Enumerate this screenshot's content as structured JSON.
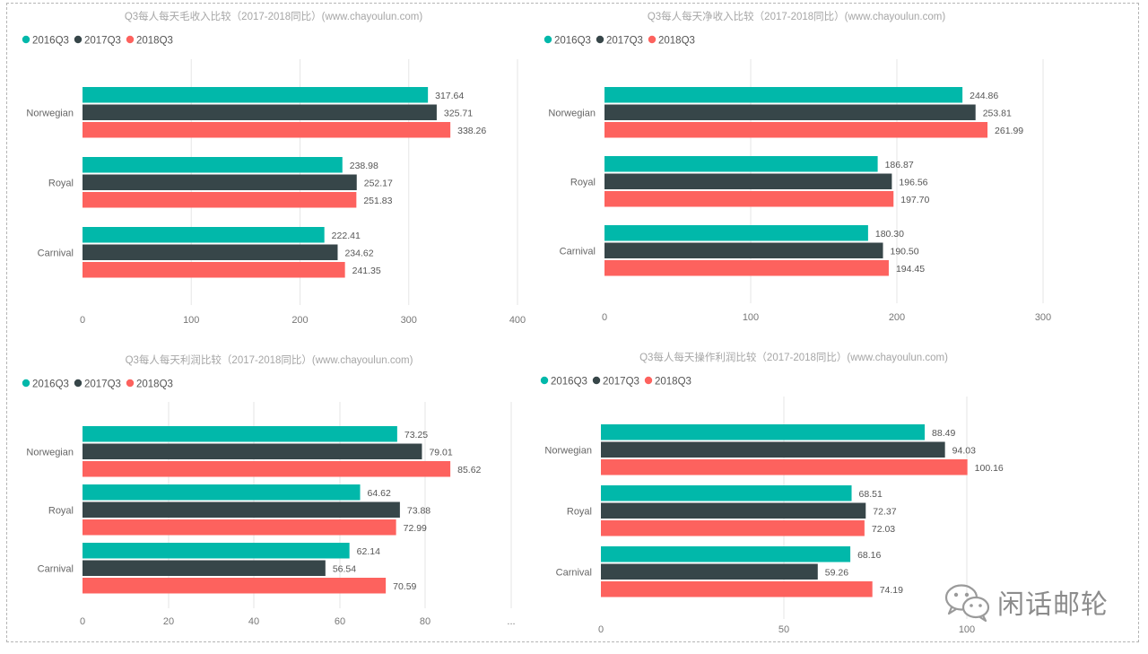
{
  "series_colors": {
    "2016Q3": "#01b8aa",
    "2017Q3": "#374649",
    "2018Q3": "#fd625e"
  },
  "watermark": {
    "text": "闲话邮轮"
  },
  "chart_data": [
    {
      "type": "bar",
      "orientation": "horizontal",
      "title": "Q3每人每天毛收入比较（2017-2018同比）(www.chayoulun.com)",
      "categories": [
        "Norwegian",
        "Royal",
        "Carnival"
      ],
      "series": [
        {
          "name": "2016Q3",
          "values": [
            317.64,
            238.98,
            222.41
          ],
          "labels": [
            "317.64",
            "238.98",
            "222.41"
          ]
        },
        {
          "name": "2017Q3",
          "values": [
            325.71,
            252.17,
            234.62
          ],
          "labels": [
            "325.71",
            "252.17",
            "234.62"
          ]
        },
        {
          "name": "2018Q3",
          "values": [
            338.26,
            251.83,
            241.35
          ],
          "labels": [
            "338.26",
            "251.83",
            "241.35"
          ]
        }
      ],
      "xlim": [
        0,
        400
      ],
      "ticks": [
        "0",
        "100",
        "200",
        "300",
        "400"
      ],
      "grid": true,
      "legend": "top-left"
    },
    {
      "type": "bar",
      "orientation": "horizontal",
      "title": "Q3每人每天净收入比较（2017-2018同比）(www.chayoulun.com)",
      "categories": [
        "Norwegian",
        "Royal",
        "Carnival"
      ],
      "series": [
        {
          "name": "2016Q3",
          "values": [
            244.86,
            186.87,
            180.3
          ],
          "labels": [
            "244.86",
            "186.87",
            "180.30"
          ]
        },
        {
          "name": "2017Q3",
          "values": [
            253.81,
            196.56,
            190.5
          ],
          "labels": [
            "253.81",
            "196.56",
            "190.50"
          ]
        },
        {
          "name": "2018Q3",
          "values": [
            261.99,
            197.7,
            194.45
          ],
          "labels": [
            "261.99",
            "197.70",
            "194.45"
          ]
        }
      ],
      "xlim": [
        0,
        300
      ],
      "ticks": [
        "0",
        "100",
        "200",
        "300"
      ],
      "grid": true,
      "legend": "top-left"
    },
    {
      "type": "bar",
      "orientation": "horizontal",
      "title": "Q3每人每天利润比较（2017-2018同比）(www.chayoulun.com)",
      "categories": [
        "Norwegian",
        "Royal",
        "Carnival"
      ],
      "series": [
        {
          "name": "2016Q3",
          "values": [
            73.25,
            64.62,
            62.14
          ],
          "labels": [
            "73.25",
            "64.62",
            "62.14"
          ]
        },
        {
          "name": "2017Q3",
          "values": [
            79.01,
            73.88,
            56.54
          ],
          "labels": [
            "79.01",
            "73.88",
            "56.54"
          ]
        },
        {
          "name": "2018Q3",
          "values": [
            85.62,
            72.99,
            70.59
          ],
          "labels": [
            "85.62",
            "72.99",
            "70.59"
          ]
        }
      ],
      "xlim": [
        0,
        100
      ],
      "ticks": [
        "0",
        "20",
        "40",
        "60",
        "80",
        "..."
      ],
      "grid": true,
      "legend": "top-left"
    },
    {
      "type": "bar",
      "orientation": "horizontal",
      "title": "Q3每人每天操作利润比较（2017-2018同比）(www.chayoulun.com)",
      "categories": [
        "Norwegian",
        "Royal",
        "Carnival"
      ],
      "series": [
        {
          "name": "2016Q3",
          "values": [
            88.49,
            68.51,
            68.16
          ],
          "labels": [
            "88.49",
            "68.51",
            "68.16"
          ]
        },
        {
          "name": "2017Q3",
          "values": [
            94.03,
            72.37,
            59.26
          ],
          "labels": [
            "94.03",
            "72.37",
            "59.26"
          ]
        },
        {
          "name": "2018Q3",
          "values": [
            100.16,
            72.03,
            74.19
          ],
          "labels": [
            "100.16",
            "72.03",
            "74.19"
          ]
        }
      ],
      "xlim": [
        0,
        100
      ],
      "ticks": [
        "0",
        "50",
        "100"
      ],
      "grid": true,
      "legend": "top-left"
    }
  ]
}
